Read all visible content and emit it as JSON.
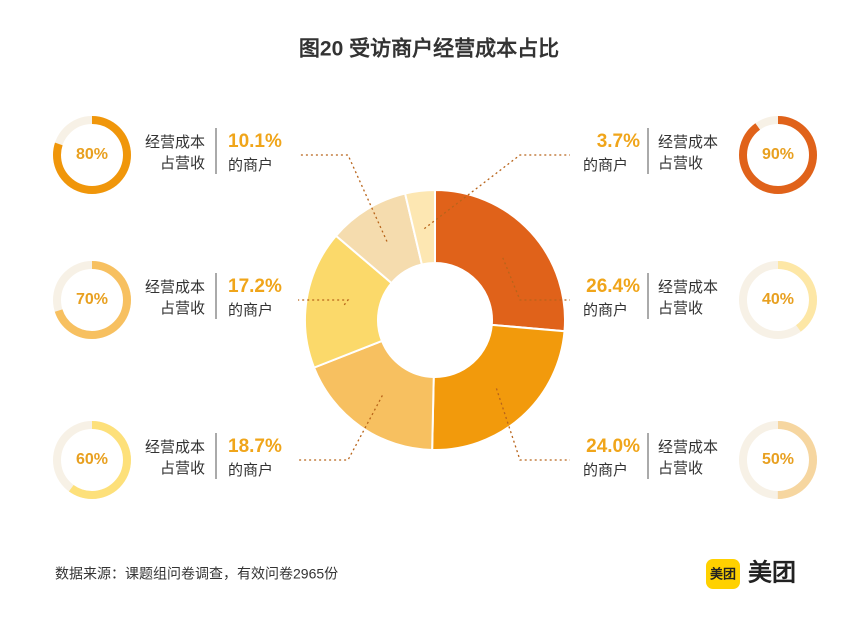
{
  "chart_data": {
    "type": "donut",
    "title": "图20  受访商户经营成本占比",
    "values": [
      26.4,
      24.0,
      18.7,
      17.2,
      10.1,
      3.7
    ],
    "value_labels": [
      "26.4%",
      "24.0%",
      "18.7%",
      "17.2%",
      "10.1%",
      "3.7%"
    ],
    "colors": [
      "#e0621a",
      "#f29a0c",
      "#f7c060",
      "#fbd96a",
      "#f5dcae",
      "#fde7b2"
    ],
    "cost_share": [
      40,
      50,
      60,
      70,
      80,
      90
    ],
    "cost_share_labels": [
      "40%",
      "50%",
      "60%",
      "70%",
      "80%",
      "90%"
    ],
    "ring_colors": [
      "#fde7a6",
      "#f6d6a0",
      "#fde07a",
      "#f7c060",
      "#f0960a",
      "#e0621a"
    ],
    "label_line1": "经营成本",
    "label_line2": "占营收",
    "unit_suffix": "的商户",
    "source": "数据来源：课题组问卷调查，有效问卷2965份",
    "brand": "美团"
  }
}
